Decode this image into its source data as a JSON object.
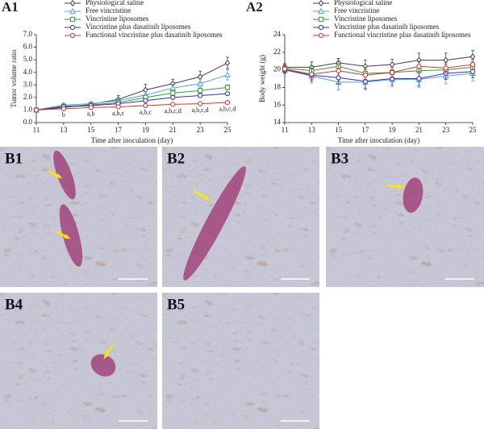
{
  "chart_data": [
    {
      "type": "line",
      "panel": "A1",
      "xlabel": "Time after inoculation (day)",
      "ylabel": "Tumor volume ratio",
      "x": [
        11,
        13,
        15,
        17,
        19,
        21,
        23,
        25
      ],
      "xlim": [
        11,
        25
      ],
      "xticks": [
        11,
        13,
        15,
        17,
        19,
        21,
        23,
        25
      ],
      "ylim": [
        0,
        7
      ],
      "yticks": [
        {
          "value": 0,
          "label": "0.0"
        },
        {
          "value": 1,
          "label": "1.0"
        },
        {
          "value": 2,
          "label": "2.0"
        },
        {
          "value": 3,
          "label": "3.0"
        },
        {
          "value": 4,
          "label": "4.0"
        },
        {
          "value": 5,
          "label": "5.0"
        },
        {
          "value": 6,
          "label": "6.0"
        },
        {
          "value": 7,
          "label": "7.0"
        }
      ],
      "series": [
        {
          "name": "Physiological saline",
          "color": "#404040",
          "marker": "diamond",
          "values": [
            1.0,
            1.2,
            1.45,
            1.85,
            2.6,
            3.1,
            3.65,
            4.75
          ],
          "errors": [
            0.05,
            0.12,
            0.18,
            0.3,
            0.45,
            0.35,
            0.45,
            0.45
          ]
        },
        {
          "name": "Free vincristine",
          "color": "#4fa3d8",
          "marker": "triangle",
          "values": [
            1.0,
            1.4,
            1.5,
            1.75,
            2.2,
            2.75,
            3.1,
            3.8
          ],
          "errors": [
            0.05,
            0.12,
            0.15,
            0.25,
            0.3,
            0.3,
            0.35,
            0.4
          ]
        },
        {
          "name": "Vincristine liposomes",
          "color": "#3a9a3a",
          "marker": "square",
          "values": [
            1.0,
            1.3,
            1.4,
            1.6,
            2.0,
            2.35,
            2.55,
            2.8
          ],
          "errors": [
            0.05,
            0.1,
            0.12,
            0.2,
            0.2,
            0.2,
            0.2,
            0.2
          ]
        },
        {
          "name": "Vincristine plus  dasatinib liposomes",
          "color": "#3030c0",
          "marker": "circle",
          "values": [
            1.0,
            1.25,
            1.35,
            1.5,
            1.75,
            2.0,
            2.15,
            2.3
          ],
          "errors": [
            0.05,
            0.1,
            0.1,
            0.15,
            0.15,
            0.15,
            0.15,
            0.15
          ]
        },
        {
          "name": "Functional vincristine plus dasatinib liposomes",
          "color": "#e03030",
          "marker": "circle",
          "values": [
            1.0,
            1.1,
            1.2,
            1.25,
            1.35,
            1.45,
            1.5,
            1.6
          ],
          "errors": [
            0.05,
            0.08,
            0.08,
            0.1,
            0.1,
            0.1,
            0.1,
            0.1
          ]
        }
      ],
      "annotations": [
        {
          "x": 13,
          "text": "b"
        },
        {
          "x": 15,
          "text": "a,b"
        },
        {
          "x": 17,
          "text": "a,b,c"
        },
        {
          "x": 19,
          "text": "a,b,c"
        },
        {
          "x": 21,
          "text": "a,b,c,d"
        },
        {
          "x": 23,
          "text": "a,b,c,d"
        },
        {
          "x": 25,
          "text": "a,b,c,d"
        }
      ]
    },
    {
      "type": "line",
      "panel": "A2",
      "xlabel": "Time after inoculation (day)",
      "ylabel": "Body weight (g)",
      "x": [
        11,
        13,
        15,
        17,
        19,
        21,
        23,
        25
      ],
      "xlim": [
        11,
        25
      ],
      "xticks": [
        11,
        13,
        15,
        17,
        19,
        21,
        23,
        25
      ],
      "ylim": [
        14,
        24
      ],
      "yticks": [
        14,
        16,
        18,
        20,
        22,
        24
      ],
      "series": [
        {
          "name": "Physiological saline",
          "color": "#404040",
          "marker": "diamond",
          "values": [
            20.3,
            20.3,
            20.8,
            20.4,
            20.6,
            21.1,
            21.1,
            21.5
          ],
          "errors": [
            0.4,
            0.6,
            0.5,
            0.7,
            0.6,
            0.8,
            0.8,
            0.7
          ]
        },
        {
          "name": "Free vincristine",
          "color": "#4fa3d8",
          "marker": "triangle",
          "values": [
            20.0,
            19.3,
            18.6,
            18.6,
            18.9,
            18.9,
            19.3,
            19.6
          ],
          "errors": [
            0.4,
            0.8,
            0.9,
            0.9,
            0.8,
            0.9,
            0.9,
            0.9
          ]
        },
        {
          "name": "Vincristine liposomes",
          "color": "#3a9a3a",
          "marker": "square",
          "values": [
            20.2,
            19.9,
            20.4,
            19.6,
            19.7,
            19.9,
            20.0,
            20.3
          ],
          "errors": [
            0.4,
            0.6,
            0.6,
            0.7,
            0.6,
            0.7,
            0.6,
            0.6
          ]
        },
        {
          "name": "Vincristine plus  dasatinib liposomes",
          "color": "#3030c0",
          "marker": "circle",
          "values": [
            20.0,
            19.4,
            19.1,
            18.7,
            19.0,
            19.0,
            19.6,
            19.8
          ],
          "errors": [
            0.4,
            0.7,
            0.7,
            0.8,
            0.7,
            0.8,
            0.7,
            0.7
          ]
        },
        {
          "name": "Functional vincristine plus dasatinib liposomes",
          "color": "#e03030",
          "marker": "circle",
          "values": [
            20.1,
            19.5,
            19.9,
            19.4,
            19.7,
            20.4,
            20.2,
            20.6
          ],
          "errors": [
            0.4,
            0.6,
            0.6,
            0.6,
            0.6,
            0.6,
            0.6,
            0.6
          ]
        }
      ]
    }
  ],
  "images": [
    {
      "label": "B1"
    },
    {
      "label": "B2"
    },
    {
      "label": "B3"
    },
    {
      "label": "B4"
    },
    {
      "label": "B5"
    }
  ]
}
